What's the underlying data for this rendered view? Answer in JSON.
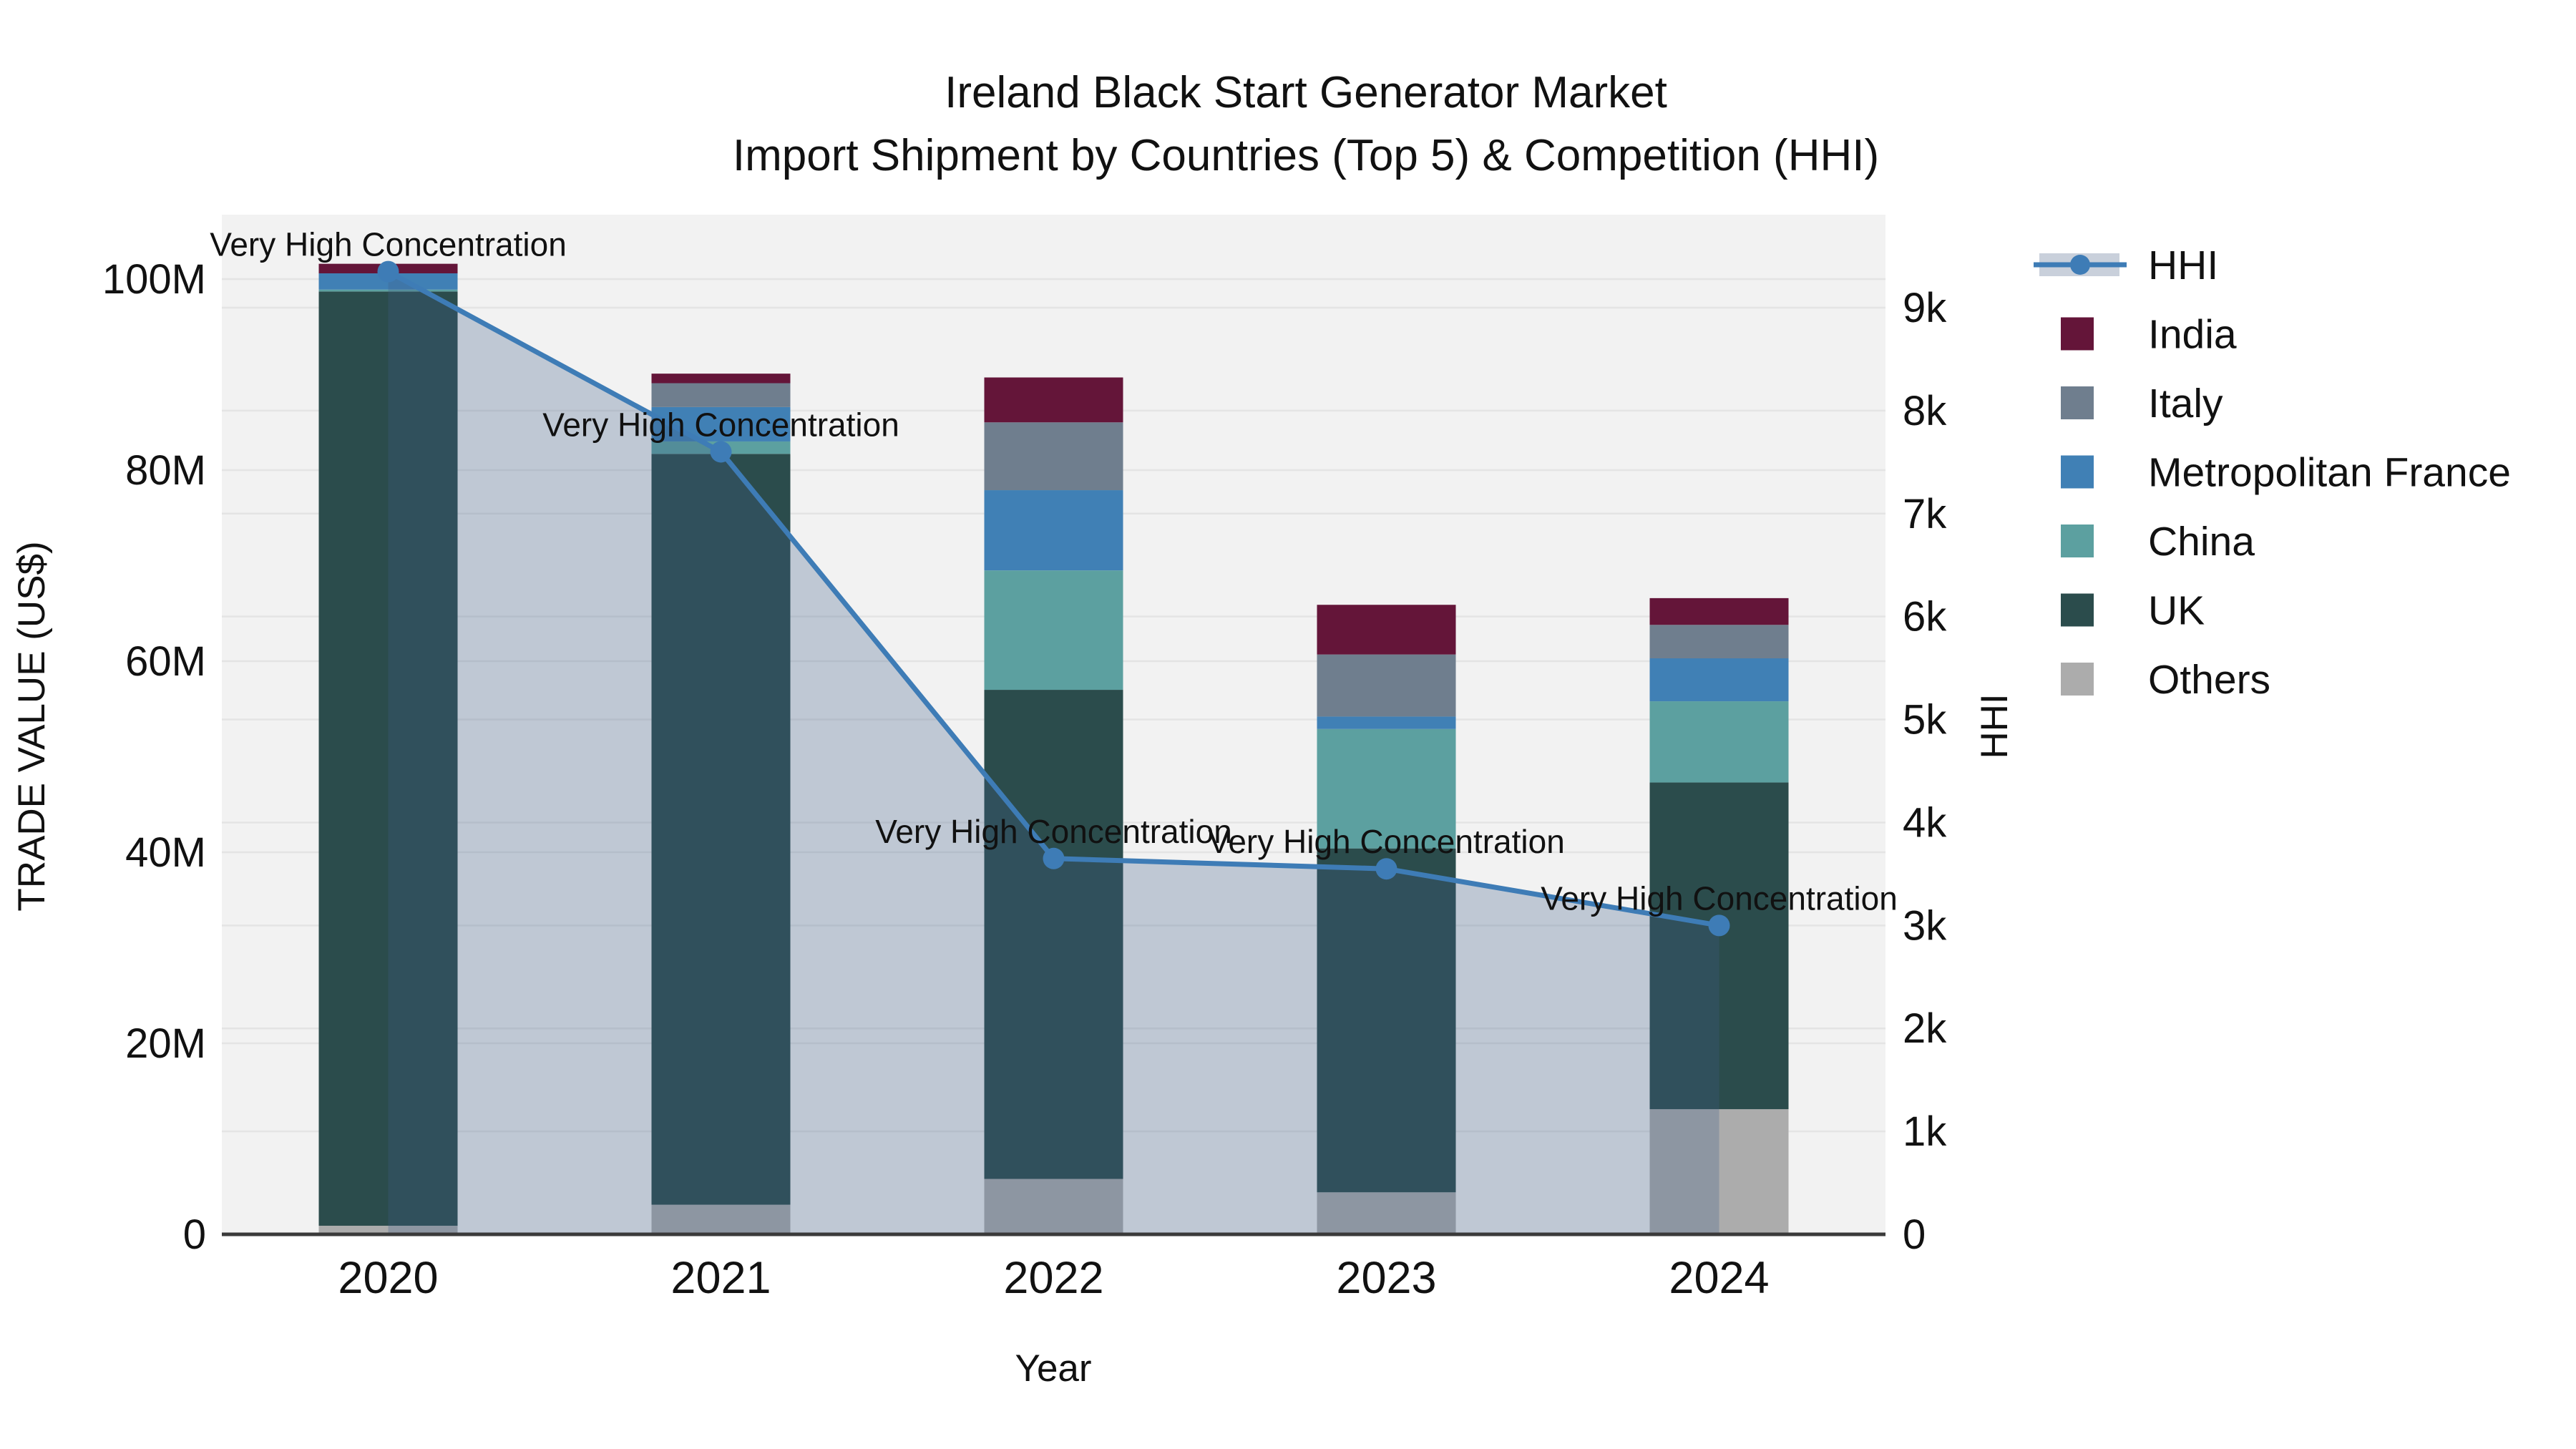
{
  "styles": {
    "page_bg": "#ffffff",
    "plot_bg": "#f2f2f2",
    "grid_color": "#e4e4e4",
    "axis_line_color": "#3a3a3a",
    "text_color": "#111111"
  },
  "chart_data": {
    "type": "combo-stacked-bar-line",
    "title_line1": "Ireland Black Start Generator Market",
    "title_line2": "Import Shipment by Countries (Top 5) & Competition (HHI)",
    "xlabel": "Year",
    "ylabel_left": "TRADE VALUE (US$)",
    "ylabel_right": "HHI",
    "categories": [
      "2020",
      "2021",
      "2022",
      "2023",
      "2024"
    ],
    "series": [
      {
        "name": "Others",
        "color": "#acacac",
        "values_musd": [
          0.9,
          3.1,
          5.8,
          4.4,
          13.1
        ]
      },
      {
        "name": "UK",
        "color": "#2b4c4c",
        "values_musd": [
          97.8,
          78.6,
          51.2,
          36.0,
          34.2
        ]
      },
      {
        "name": "China",
        "color": "#5ca0a0",
        "values_musd": [
          0.2,
          1.3,
          12.5,
          12.5,
          8.5
        ]
      },
      {
        "name": "Metropolitan France",
        "color": "#4080b5",
        "values_musd": [
          1.7,
          3.6,
          8.4,
          1.3,
          4.5
        ]
      },
      {
        "name": "Italy",
        "color": "#6f7e8e",
        "values_musd": [
          0.0,
          2.5,
          7.1,
          6.5,
          3.5
        ]
      },
      {
        "name": "India",
        "color": "#641539",
        "values_musd": [
          1.0,
          1.0,
          4.7,
          5.2,
          2.8
        ]
      }
    ],
    "bar_totals_musd": [
      101.6,
      90.1,
      89.7,
      65.9,
      66.6
    ],
    "line": {
      "name": "HHI",
      "color": "#3e7cb6",
      "area_fill": "rgba(62,93,138,0.28)",
      "values": [
        9350,
        7600,
        3650,
        3550,
        3000
      ]
    },
    "annotations": [
      "Very High Concentration",
      "Very High Concentration",
      "Very High Concentration",
      "Very High Concentration",
      "Very High Concentration"
    ],
    "yaxis_left": {
      "tick_values": [
        0,
        20,
        40,
        60,
        80,
        100
      ],
      "tick_labels": [
        "0",
        "20M",
        "40M",
        "60M",
        "80M",
        "100M"
      ],
      "max": 100
    },
    "yaxis_right": {
      "tick_values": [
        0,
        1000,
        2000,
        3000,
        4000,
        5000,
        6000,
        7000,
        8000,
        9000
      ],
      "tick_labels": [
        "0",
        "1k",
        "2k",
        "3k",
        "4k",
        "5k",
        "6k",
        "7k",
        "8k",
        "9k"
      ],
      "max": 9000
    },
    "legend": [
      {
        "label": "HHI",
        "kind": "line",
        "color": "#3e7cb6",
        "band": "#c9d0db"
      },
      {
        "label": "India",
        "kind": "swatch",
        "color": "#641539"
      },
      {
        "label": "Italy",
        "kind": "swatch",
        "color": "#6f7e8e"
      },
      {
        "label": "Metropolitan France",
        "kind": "swatch",
        "color": "#4080b5"
      },
      {
        "label": "China",
        "kind": "swatch",
        "color": "#5ca0a0"
      },
      {
        "label": "UK",
        "kind": "swatch",
        "color": "#2b4c4c"
      },
      {
        "label": "Others",
        "kind": "swatch",
        "color": "#acacac"
      }
    ]
  }
}
